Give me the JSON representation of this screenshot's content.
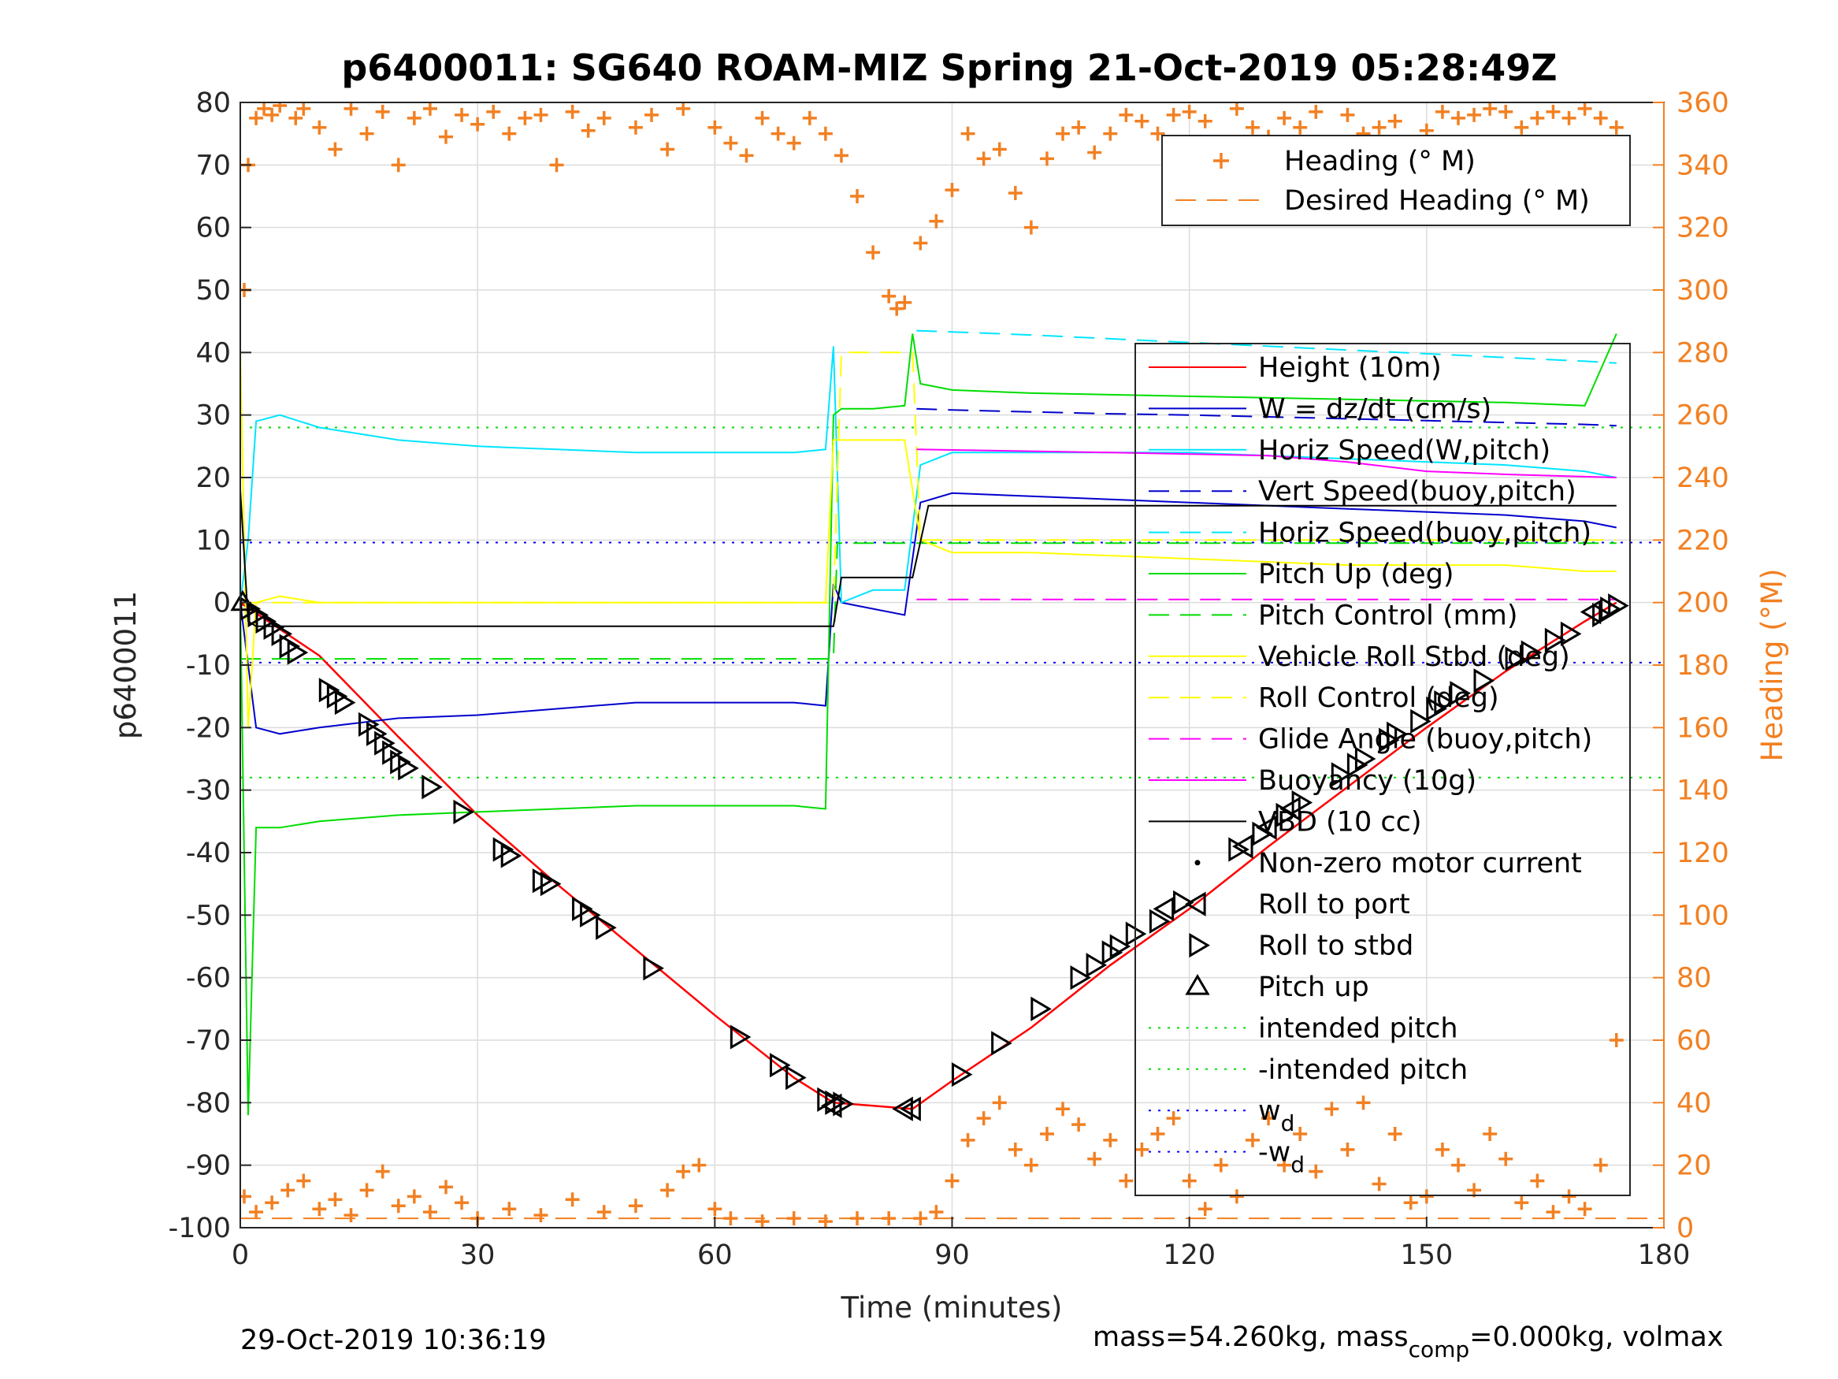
{
  "chart_data": {
    "type": "line",
    "title": "p6400011: SG640 ROAM-MIZ Spring 21-Oct-2019 05:28:49Z",
    "xlabel": "Time (minutes)",
    "ylabel": "p6400011",
    "y2label": "Heading (°M)",
    "xlim": [
      0,
      180
    ],
    "ylim": [
      -100,
      80
    ],
    "y2lim": [
      0,
      360
    ],
    "x_ticks": [
      "0",
      "30",
      "60",
      "90",
      "120",
      "150",
      "180"
    ],
    "y_ticks": [
      "-100",
      "-90",
      "-80",
      "-70",
      "-60",
      "-50",
      "-40",
      "-30",
      "-20",
      "-10",
      "0",
      "10",
      "20",
      "30",
      "40",
      "50",
      "60",
      "70",
      "80"
    ],
    "y2_ticks": [
      "0",
      "20",
      "40",
      "60",
      "80",
      "100",
      "120",
      "140",
      "160",
      "180",
      "200",
      "220",
      "240",
      "260",
      "280",
      "300",
      "320",
      "340",
      "360"
    ],
    "grid": true,
    "legend_heading": {
      "placement": "top-right",
      "entries": [
        {
          "label": "Heading (° M)",
          "color": "#f28022",
          "style": "plus"
        },
        {
          "label": "Desired Heading (° M)",
          "color": "#f28022",
          "style": "dashed"
        }
      ]
    },
    "legend_main": {
      "placement": "right",
      "entries": [
        {
          "label": "Height (10m)",
          "color": "#ff0000",
          "style": "solid"
        },
        {
          "label": "W = dz/dt (cm/s)",
          "color": "#0000cc",
          "style": "solid"
        },
        {
          "label": "Horiz Speed(W,pitch)",
          "color": "#00e5ff",
          "style": "solid"
        },
        {
          "label": "Vert Speed(buoy,pitch)",
          "color": "#0000cc",
          "style": "dashed"
        },
        {
          "label": "Horiz Speed(buoy,pitch)",
          "color": "#00e5ff",
          "style": "dashed"
        },
        {
          "label": "Pitch Up (deg)",
          "color": "#00dd00",
          "style": "solid"
        },
        {
          "label": "Pitch Control (mm)",
          "color": "#00dd00",
          "style": "dashed"
        },
        {
          "label": "Vehicle Roll Stbd (deg)",
          "color": "#ffff00",
          "style": "solid"
        },
        {
          "label": "Roll Control (deg)",
          "color": "#ffff00",
          "style": "dashed"
        },
        {
          "label": "Glide Angle (buoy,pitch)",
          "color": "#ff00ff",
          "style": "dashed"
        },
        {
          "label": "Buoyancy (10g)",
          "color": "#ff00ff",
          "style": "solid"
        },
        {
          "label": "VBD (10 cc)",
          "color": "#000000",
          "style": "solid"
        },
        {
          "label": "Non-zero motor current",
          "color": "#000000",
          "style": "dot"
        },
        {
          "label": "Roll to port",
          "color": "#000000",
          "style": "tri-left"
        },
        {
          "label": "Roll to stbd",
          "color": "#000000",
          "style": "tri-right"
        },
        {
          "label": "Pitch up",
          "color": "#000000",
          "style": "tri-up"
        },
        {
          "label": "intended pitch",
          "color": "#00dd00",
          "style": "dotted"
        },
        {
          "label": "-intended pitch",
          "color": "#00dd00",
          "style": "dotted"
        },
        {
          "label": "w",
          "sub": "d",
          "color": "#0000ff",
          "style": "dotted"
        },
        {
          "label": "-w",
          "sub": "d",
          "color": "#0000ff",
          "style": "dotted"
        }
      ]
    },
    "reference_lines": {
      "intended_pitch": 28,
      "neg_intended_pitch": -28,
      "w_d": 9.6,
      "neg_w_d": -9.6,
      "desired_heading_deg": 3
    },
    "series": [
      {
        "name": "Height (10m)",
        "x": [
          0,
          10,
          20,
          30,
          40,
          50,
          60,
          70,
          75,
          80,
          85,
          90,
          100,
          110,
          120,
          130,
          140,
          150,
          160,
          170,
          174
        ],
        "y": [
          0,
          -8.5,
          -21.5,
          -34,
          -45,
          -55.5,
          -66,
          -76,
          -80,
          -80.5,
          -81,
          -76.5,
          -68,
          -58,
          -49,
          -39,
          -29.5,
          -20,
          -11,
          -3,
          0
        ]
      },
      {
        "name": "W = dz/dt (cm/s)",
        "x": [
          0,
          1,
          2,
          5,
          10,
          20,
          30,
          40,
          50,
          60,
          70,
          74,
          75,
          76,
          80,
          84,
          86,
          90,
          100,
          120,
          140,
          160,
          170,
          174
        ],
        "y": [
          0,
          -10,
          -20,
          -21,
          -20,
          -18.5,
          -18,
          -17,
          -16,
          -16,
          -16,
          -16.5,
          3,
          0,
          -1,
          -2,
          16,
          17.5,
          17,
          16,
          15,
          14,
          13,
          12
        ]
      },
      {
        "name": "Horiz Speed(W,pitch)",
        "x": [
          0,
          1,
          2,
          5,
          10,
          20,
          30,
          40,
          50,
          60,
          70,
          74,
          75,
          76,
          80,
          84,
          86,
          90,
          100,
          120,
          140,
          160,
          170,
          174
        ],
        "y": [
          0,
          10,
          29,
          30,
          28,
          26,
          25,
          24.5,
          24,
          24,
          24,
          24.5,
          41,
          0,
          2,
          2,
          22,
          24,
          24,
          24,
          23,
          22,
          21,
          20
        ]
      },
      {
        "name": "Vert Speed(buoy,pitch)",
        "x": [
          85.5,
          90,
          100,
          110,
          120,
          130,
          140,
          150,
          160,
          170,
          174
        ],
        "y": [
          31,
          30.8,
          30.5,
          30.2,
          30,
          29.7,
          29.4,
          29.1,
          28.8,
          28.5,
          28.3
        ]
      },
      {
        "name": "Horiz Speed(buoy,pitch)",
        "x": [
          85.5,
          90,
          100,
          110,
          120,
          130,
          140,
          150,
          160,
          170,
          174
        ],
        "y": [
          43.5,
          43.3,
          42.8,
          42.2,
          41.6,
          41,
          40.4,
          39.8,
          39.2,
          38.6,
          38.3
        ]
      },
      {
        "name": "Pitch Up (deg)",
        "x": [
          0,
          1,
          2,
          5,
          10,
          20,
          30,
          40,
          50,
          60,
          70,
          74,
          75,
          76,
          80,
          84,
          85,
          86,
          90,
          100,
          120,
          140,
          160,
          170,
          174
        ],
        "y": [
          0,
          -82,
          -36,
          -36,
          -35,
          -34,
          -33.5,
          -33,
          -32.5,
          -32.5,
          -32.5,
          -33,
          30,
          31,
          31,
          31.5,
          43,
          35,
          34,
          33.5,
          33,
          32.5,
          32,
          31.5,
          43
        ]
      },
      {
        "name": "Pitch Control (mm)",
        "x": [
          0,
          75,
          75.5,
          174
        ],
        "y": [
          -9,
          -9,
          9.5,
          9.5
        ]
      },
      {
        "name": "Vehicle Roll Stbd (deg)",
        "x": [
          0,
          1,
          2,
          5,
          10,
          20,
          30,
          40,
          50,
          60,
          70,
          74,
          75,
          76,
          80,
          84,
          86,
          90,
          100,
          120,
          140,
          160,
          170,
          174
        ],
        "y": [
          40,
          -20,
          0,
          1,
          0,
          0,
          0,
          0,
          0,
          0,
          0,
          0,
          26,
          26,
          26,
          26,
          10,
          8,
          8,
          7,
          6,
          6,
          5,
          5
        ]
      },
      {
        "name": "Roll Control (deg)",
        "x": [
          0,
          75,
          76,
          80,
          85,
          86,
          174
        ],
        "y": [
          0,
          0,
          40,
          40,
          40,
          10,
          10
        ]
      },
      {
        "name": "Glide Angle (buoy,pitch)",
        "x": [
          85.5,
          174
        ],
        "y": [
          0.5,
          0.5
        ]
      },
      {
        "name": "Buoyancy (10g)",
        "x": [
          85.5,
          110,
          130,
          140,
          150,
          160,
          174
        ],
        "y": [
          24.5,
          24,
          23.5,
          22.5,
          21,
          20.5,
          20
        ]
      },
      {
        "name": "VBD (10 cc)",
        "x": [
          0,
          1,
          2,
          74,
          75,
          76,
          85,
          87,
          174
        ],
        "y": [
          18,
          -3,
          -3.8,
          -3.8,
          -3.8,
          4,
          4,
          15.5,
          15.5
        ]
      },
      {
        "name": "Heading (° M)",
        "axis": "right",
        "style": "plus",
        "x": [
          0.5,
          1,
          2,
          3,
          4,
          5,
          7,
          8,
          10,
          12,
          14,
          16,
          18,
          20,
          22,
          24,
          26,
          28,
          30,
          32,
          34,
          36,
          38,
          40,
          42,
          44,
          46,
          50,
          52,
          54,
          56,
          60,
          62,
          64,
          66,
          68,
          70,
          72,
          74,
          76,
          78,
          80,
          82,
          83,
          84,
          86,
          88,
          90,
          92,
          94,
          96,
          98,
          100,
          102,
          104,
          106,
          108,
          110,
          112,
          114,
          116,
          118,
          120,
          122,
          124,
          126,
          128,
          130,
          132,
          134,
          136,
          138,
          140,
          142,
          144,
          146,
          148,
          150,
          152,
          154,
          156,
          158,
          160,
          162,
          164,
          166,
          168,
          170,
          172,
          174
        ],
        "y": [
          300,
          340,
          355,
          358,
          356,
          359,
          355,
          358,
          352,
          345,
          358,
          350,
          357,
          340,
          355,
          358,
          349,
          356,
          353,
          357,
          350,
          355,
          356,
          340,
          357,
          351,
          355,
          352,
          356,
          345,
          358,
          352,
          347,
          343,
          355,
          350,
          347,
          355,
          350,
          343,
          330,
          312,
          298,
          294,
          296,
          315,
          322,
          332,
          350,
          342,
          345,
          331,
          320,
          342,
          350,
          352,
          344,
          350,
          356,
          354,
          350,
          356,
          357,
          354,
          345,
          358,
          352,
          349,
          355,
          352,
          357,
          345,
          356,
          350,
          352,
          354,
          345,
          351,
          357,
          355,
          356,
          358,
          357,
          352,
          355,
          357,
          355,
          358,
          355,
          352
        ]
      },
      {
        "name": "Heading (° M) low",
        "axis": "right",
        "style": "plus",
        "x": [
          0.5,
          2,
          4,
          6,
          8,
          10,
          12,
          14,
          16,
          18,
          20,
          22,
          24,
          26,
          28,
          30,
          34,
          38,
          42,
          46,
          50,
          54,
          56,
          58,
          60,
          62,
          66,
          70,
          74,
          78,
          82,
          86,
          88,
          90,
          92,
          94,
          96,
          98,
          100,
          102,
          104,
          106,
          108,
          110,
          112,
          114,
          116,
          118,
          120,
          122,
          124,
          126,
          128,
          130,
          132,
          134,
          136,
          138,
          140,
          142,
          144,
          146,
          148,
          150,
          152,
          154,
          156,
          158,
          160,
          162,
          164,
          166,
          168,
          170,
          172,
          174
        ],
        "y": [
          10,
          5,
          8,
          12,
          15,
          6,
          9,
          4,
          12,
          18,
          7,
          10,
          5,
          13,
          8,
          3,
          6,
          4,
          9,
          5,
          7,
          12,
          18,
          20,
          6,
          3,
          2,
          3,
          2,
          3,
          3,
          3,
          5,
          15,
          28,
          35,
          40,
          25,
          20,
          30,
          38,
          33,
          22,
          28,
          15,
          25,
          30,
          35,
          15,
          6,
          20,
          10,
          28,
          35,
          20,
          30,
          18,
          38,
          25,
          40,
          14,
          30,
          8,
          10,
          25,
          20,
          12,
          30,
          22,
          8,
          15,
          5,
          10,
          6,
          20,
          60
        ]
      }
    ],
    "markers": {
      "pitch_up": [
        [
          0.3,
          0
        ]
      ],
      "roll_to_stbd": [
        [
          1,
          -1
        ],
        [
          2,
          -2
        ],
        [
          3,
          -3
        ],
        [
          4,
          -4
        ],
        [
          5,
          -5
        ],
        [
          6,
          -7
        ],
        [
          7,
          -8
        ],
        [
          11,
          -14
        ],
        [
          12,
          -15
        ],
        [
          13,
          -16
        ],
        [
          16,
          -19.5
        ],
        [
          17,
          -21
        ],
        [
          18,
          -22.5
        ],
        [
          19,
          -24
        ],
        [
          20,
          -25.5
        ],
        [
          21,
          -26.5
        ],
        [
          24,
          -29.5
        ],
        [
          28,
          -33.5
        ],
        [
          33,
          -39.5
        ],
        [
          34,
          -40.5
        ],
        [
          38,
          -44.5
        ],
        [
          39,
          -45
        ],
        [
          43,
          -49
        ],
        [
          44,
          -50
        ],
        [
          46,
          -52
        ],
        [
          52,
          -58.5
        ],
        [
          63,
          -69.5
        ],
        [
          68,
          -74
        ],
        [
          70,
          -76
        ],
        [
          74,
          -79.5
        ],
        [
          75,
          -80
        ],
        [
          76,
          -80.2
        ],
        [
          91,
          -75.5
        ],
        [
          96,
          -70.5
        ],
        [
          101,
          -65
        ],
        [
          106,
          -60
        ],
        [
          108,
          -58
        ],
        [
          110,
          -56
        ],
        [
          111,
          -55
        ],
        [
          113,
          -53
        ],
        [
          116,
          -51
        ],
        [
          119,
          -48
        ],
        [
          126,
          -39.5
        ],
        [
          129,
          -37
        ],
        [
          132,
          -34
        ],
        [
          134,
          -32
        ],
        [
          139,
          -27.5
        ],
        [
          141,
          -26
        ],
        [
          142,
          -25
        ],
        [
          145,
          -22
        ],
        [
          146,
          -21
        ],
        [
          149,
          -19
        ],
        [
          151,
          -17
        ],
        [
          152,
          -16
        ],
        [
          154,
          -14.5
        ],
        [
          157,
          -12.5
        ],
        [
          161,
          -9
        ],
        [
          163,
          -8
        ],
        [
          166,
          -6
        ],
        [
          168,
          -5
        ],
        [
          172,
          -2
        ],
        [
          173,
          -1
        ],
        [
          174,
          -0.5
        ]
      ],
      "roll_to_port": [
        [
          75,
          -80.5
        ],
        [
          84,
          -81
        ],
        [
          85,
          -81
        ],
        [
          117,
          -49
        ],
        [
          127,
          -39
        ],
        [
          130,
          -36
        ],
        [
          133,
          -33
        ],
        [
          171,
          -1.5
        ]
      ]
    }
  },
  "footer": {
    "left_text": "29-Oct-2019 10:36:19",
    "right_text_a": "mass=54.260kg, mass",
    "right_sub": "comp",
    "right_text_b": "=0.000kg, volmax"
  }
}
